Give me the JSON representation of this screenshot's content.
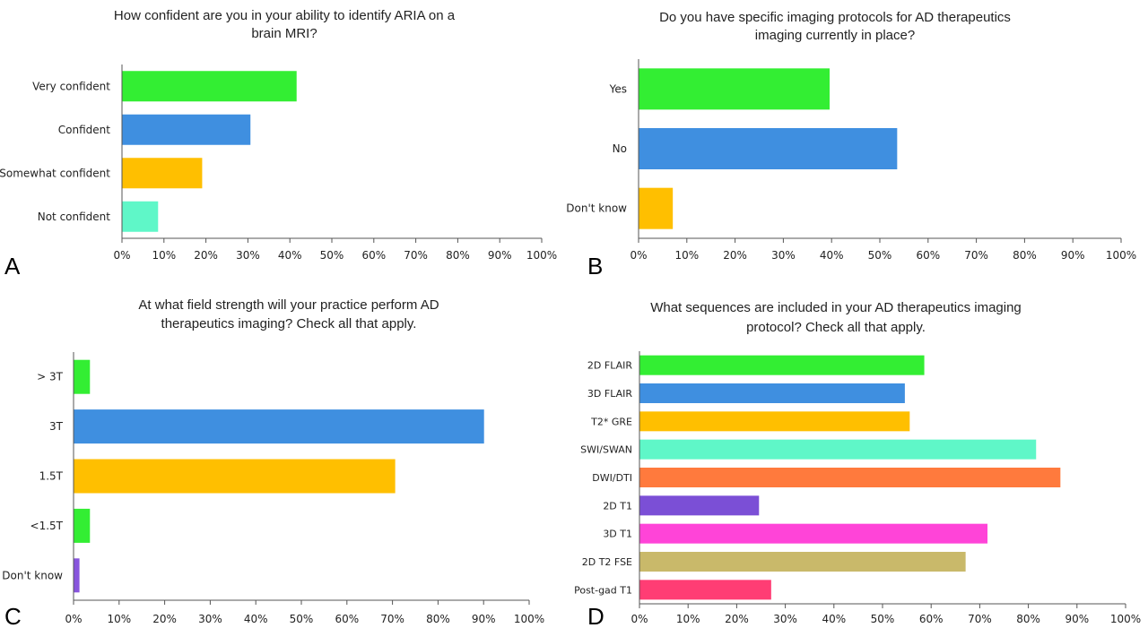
{
  "chart_data": [
    {
      "panel": "A",
      "type": "bar",
      "orientation": "horizontal",
      "title": "How confident are you in your ability to identify ARIA on a brain MRI?",
      "title_lines": [
        "How confident are you in your ability to identify ARIA on a",
        "brain MRI?"
      ],
      "categories": [
        "Very confident",
        "Confident",
        "Somewhat confident",
        "Not confident"
      ],
      "values": [
        41.5,
        30.5,
        19,
        8.5
      ],
      "colors": [
        "#33ee33",
        "#3f8fe0",
        "#ffbf00",
        "#5ff7c8"
      ],
      "xlim": [
        0,
        100
      ],
      "ticks": [
        "0%",
        "10%",
        "20%",
        "30%",
        "40%",
        "50%",
        "60%",
        "70%",
        "80%",
        "90%",
        "100%"
      ],
      "grid": false
    },
    {
      "panel": "B",
      "type": "bar",
      "orientation": "horizontal",
      "title": "Do you have specific imaging protocols for AD therapeutics imaging currently  in place?",
      "title_lines": [
        "Do you have specific imaging protocols for AD therapeutics",
        "imaging currently  in place?"
      ],
      "categories": [
        "Yes",
        "No",
        "Don't know"
      ],
      "values": [
        39.5,
        53.5,
        7
      ],
      "colors": [
        "#33ee33",
        "#3f8fe0",
        "#ffbf00"
      ],
      "xlim": [
        0,
        100
      ],
      "ticks": [
        "0%",
        "10%",
        "20%",
        "30%",
        "40%",
        "50%",
        "60%",
        "70%",
        "80%",
        "90%",
        "100%"
      ],
      "grid": false
    },
    {
      "panel": "C",
      "type": "bar",
      "orientation": "horizontal",
      "title": "At what field strength  will your practice perform AD therapeutics imaging? Check all that apply.",
      "title_lines": [
        "At what field strength  will your practice perform AD",
        "therapeutics imaging? Check all that apply."
      ],
      "categories": [
        "> 3T",
        "3T",
        "1.5T",
        "<1.5T",
        "Don't know"
      ],
      "values": [
        3.5,
        90,
        70.5,
        3.5,
        1.2
      ],
      "colors": [
        "#33ee33",
        "#3f8fe0",
        "#ffbf00",
        "#33ee33",
        "#8855dd"
      ],
      "xlim": [
        0,
        100
      ],
      "ticks": [
        "0%",
        "10%",
        "20%",
        "30%",
        "40%",
        "50%",
        "60%",
        "70%",
        "80%",
        "90%",
        "100%"
      ],
      "grid": false
    },
    {
      "panel": "D",
      "type": "bar",
      "orientation": "horizontal",
      "title": "What sequences are included in your AD therapeutics imaging protocol? Check all that apply.",
      "title_lines": [
        "What sequences are included in your AD therapeutics imaging",
        "protocol? Check all that apply."
      ],
      "categories": [
        "2D FLAIR",
        "3D FLAIR",
        "T2* GRE",
        "SWI/SWAN",
        "DWI/DTI",
        "2D T1",
        "3D T1",
        "2D T2 FSE",
        "Post-gad T1"
      ],
      "values": [
        58.5,
        54.5,
        55.5,
        81.5,
        86.5,
        24.5,
        71.5,
        67,
        27
      ],
      "colors": [
        "#33ee33",
        "#3f8fe0",
        "#ffbf00",
        "#5ff7c8",
        "#ff7a3d",
        "#7b4fd6",
        "#ff44d8",
        "#c9b96a",
        "#ff3d74"
      ],
      "xlim": [
        0,
        100
      ],
      "ticks": [
        "0%",
        "10%",
        "20%",
        "30%",
        "40%",
        "50%",
        "60%",
        "70%",
        "80%",
        "90%",
        "100%"
      ],
      "grid": false
    }
  ]
}
